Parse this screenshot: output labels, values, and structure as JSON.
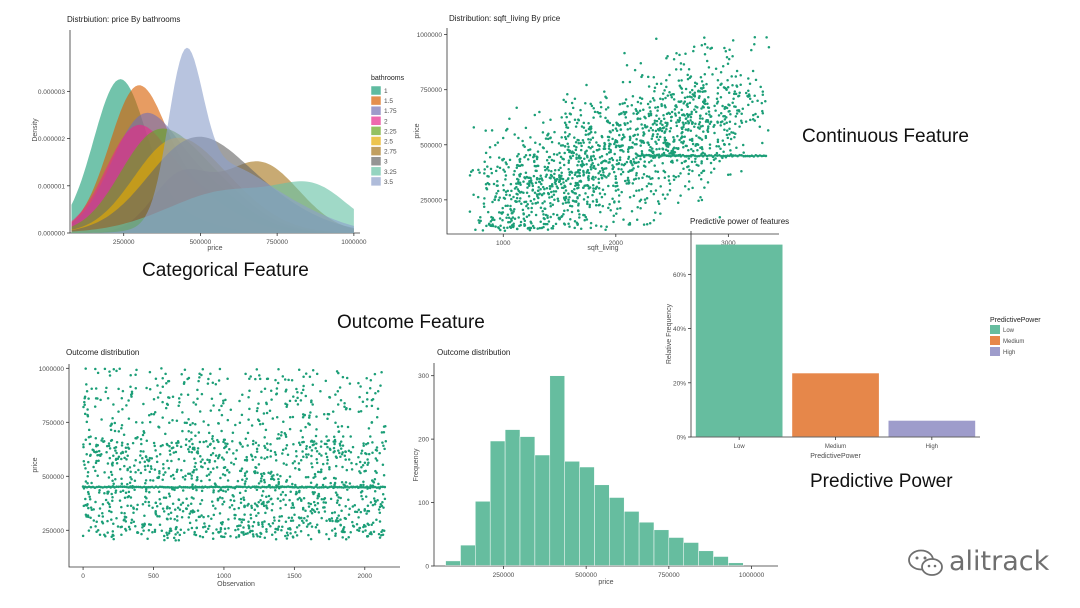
{
  "captions": {
    "categorical": "Categorical Feature",
    "continuous": "Continuous Feature",
    "outcome": "Outcome Feature",
    "predictive": "Predictive Power"
  },
  "watermark": {
    "icon": "wechat-icon",
    "text": "alitrack"
  },
  "colors": {
    "teal": "#1b9e77",
    "teal_fill": "#66bd9f",
    "orange": "#e6874a",
    "purple": "#9e9ccb",
    "axis": "#333333",
    "text": "#4d4d4d"
  },
  "chart_data": [
    {
      "id": "density",
      "type": "area",
      "title": "Distrbiution: price By bathrooms",
      "xlabel": "price",
      "ylabel": "Density",
      "xlim": [
        75000,
        1020000
      ],
      "ylim": [
        0,
        4.3e-06
      ],
      "x_ticks": [
        250000,
        500000,
        750000,
        1000000
      ],
      "x_tick_labels": [
        "250000",
        "500000",
        "750000",
        "1000000"
      ],
      "y_ticks": [
        0,
        1e-06,
        2e-06,
        3e-06
      ],
      "y_tick_labels": [
        "0.000000",
        "0.000001",
        "0.000002",
        "0.000003"
      ],
      "legend_title": "bathrooms",
      "legend_position": "right",
      "series": [
        {
          "name": "1",
          "color": "#1b9e77",
          "components": [
            [
              235000,
              85000,
              3.1e-06
            ],
            [
              400000,
              120000,
              4e-07
            ]
          ]
        },
        {
          "name": "1.5",
          "color": "#d95f02",
          "components": [
            [
              290000,
              90000,
              2.6e-06
            ],
            [
              460000,
              160000,
              9e-07
            ]
          ]
        },
        {
          "name": "1.75",
          "color": "#7570b3",
          "components": [
            [
              300000,
              100000,
              1.8e-06
            ],
            [
              460000,
              150000,
              1.2e-06
            ]
          ]
        },
        {
          "name": "2",
          "color": "#e7298a",
          "components": [
            [
              280000,
              95000,
              1.6e-06
            ],
            [
              420000,
              150000,
              1e-06
            ]
          ]
        },
        {
          "name": "2.25",
          "color": "#66a61e",
          "components": [
            [
              330000,
              110000,
              1.3e-06
            ],
            [
              480000,
              150000,
              1.3e-06
            ]
          ]
        },
        {
          "name": "2.5",
          "color": "#e6ab02",
          "components": [
            [
              380000,
              120000,
              1.2e-06
            ],
            [
              520000,
              150000,
              1.1e-06
            ]
          ]
        },
        {
          "name": "2.75",
          "color": "#a6761d",
          "components": [
            [
              430000,
              90000,
              1.1e-06
            ],
            [
              690000,
              130000,
              1.5e-06
            ]
          ]
        },
        {
          "name": "3",
          "color": "#666666",
          "components": [
            [
              470000,
              150000,
              1.8e-06
            ],
            [
              700000,
              160000,
              6e-07
            ]
          ]
        },
        {
          "name": "3.25",
          "color": "#66c2a5",
          "components": [
            [
              600000,
              200000,
              9e-07
            ],
            [
              880000,
              110000,
              7e-07
            ]
          ]
        },
        {
          "name": "3.5",
          "color": "#8da0cb",
          "components": [
            [
              450000,
              55000,
              3.1e-06
            ],
            [
              560000,
              120000,
              1.1e-06
            ],
            [
              750000,
              150000,
              6e-07
            ]
          ]
        }
      ]
    },
    {
      "id": "scatter_sqft",
      "type": "scatter",
      "title": "Distribution: sqft_living By price",
      "xlabel": "sqft_living",
      "ylabel": "price",
      "xlim": [
        500,
        3450
      ],
      "ylim": [
        95000,
        1030000
      ],
      "x_ticks": [
        1000,
        2000,
        3000
      ],
      "x_tick_labels": [
        "1000",
        "2000",
        "3000"
      ],
      "y_ticks": [
        250000,
        500000,
        750000,
        1000000
      ],
      "y_tick_labels": [
        "250000",
        "500000",
        "750000",
        "1000000"
      ],
      "trend": {
        "intercept": 180000,
        "slope": 200,
        "price_cap": 450000,
        "cap_x_from": 2200
      },
      "n_points": 1600,
      "color": "#1b9e77"
    },
    {
      "id": "bar_power",
      "type": "bar",
      "title": "Predictive power of features",
      "xlabel": "PredictivePower",
      "ylabel": "Relative Frequency",
      "categories": [
        "Low",
        "Medium",
        "High"
      ],
      "values": [
        0.71,
        0.235,
        0.06
      ],
      "colors": [
        "#66bd9f",
        "#e6874a",
        "#9e9ccb"
      ],
      "ylim": [
        0,
        0.76
      ],
      "y_ticks": [
        0,
        0.2,
        0.4,
        0.6
      ],
      "y_tick_labels": [
        "0%",
        "20%",
        "40%",
        "60%"
      ],
      "legend_title": "PredictivePower",
      "legend_position": "right"
    },
    {
      "id": "scatter_obs",
      "type": "scatter",
      "title": "Outcome distribution",
      "xlabel": "Observation",
      "ylabel": "price",
      "xlim": [
        -100,
        2250
      ],
      "ylim": [
        80000,
        1020000
      ],
      "x_ticks": [
        0,
        500,
        1000,
        1500,
        2000
      ],
      "x_tick_labels": [
        "0",
        "500",
        "1000",
        "1500",
        "2000"
      ],
      "y_ticks": [
        250000,
        500000,
        750000,
        1000000
      ],
      "y_tick_labels": [
        "250000",
        "500000",
        "750000",
        "1000000"
      ],
      "dash_line": 450000,
      "n_points": 1500,
      "color": "#1b9e77"
    },
    {
      "id": "histogram",
      "type": "bar",
      "title": "Outcome distribution",
      "xlabel": "price",
      "ylabel": "Frequency",
      "xlim": [
        40000,
        1080000
      ],
      "ylim": [
        0,
        320
      ],
      "bin_start": 75000,
      "bin_width": 45000,
      "values": [
        8,
        33,
        102,
        197,
        215,
        204,
        175,
        300,
        165,
        156,
        128,
        108,
        86,
        69,
        57,
        45,
        37,
        24,
        15,
        5
      ],
      "x_ticks": [
        250000,
        500000,
        750000,
        1000000
      ],
      "x_tick_labels": [
        "250000",
        "500000",
        "750000",
        "1000000"
      ],
      "y_ticks": [
        0,
        100,
        200,
        300
      ],
      "y_tick_labels": [
        "0",
        "100",
        "200",
        "300"
      ],
      "color": "#66bd9f"
    }
  ]
}
